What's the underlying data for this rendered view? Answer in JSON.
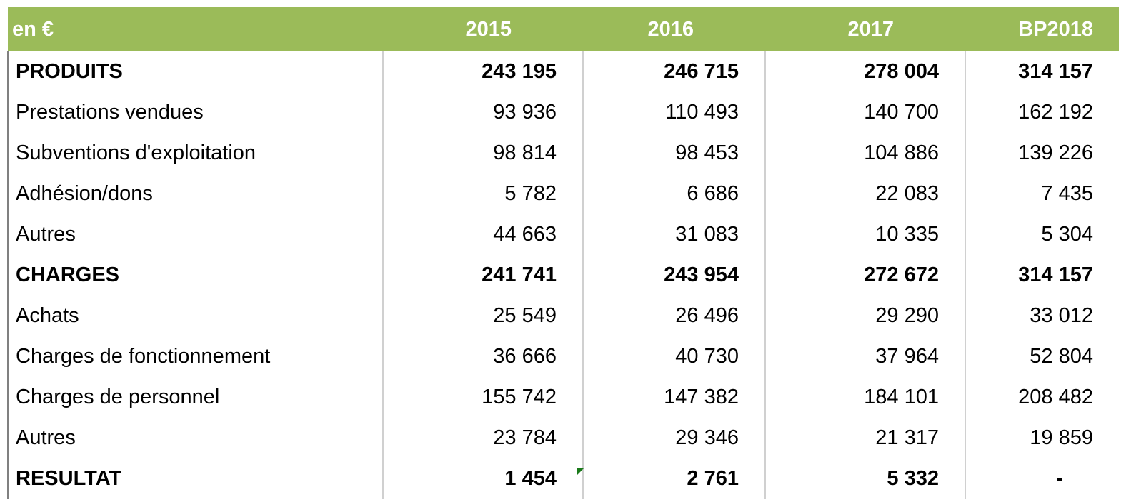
{
  "table": {
    "header": [
      "en €",
      "2015",
      "2016",
      "2017",
      "BP2018"
    ],
    "rows": [
      [
        "PRODUITS",
        "243 195",
        "246 715",
        "278 004",
        "314 157"
      ],
      [
        "Prestations vendues",
        "93 936",
        "110 493",
        "140 700",
        "162 192"
      ],
      [
        "Subventions d'exploitation",
        "98 814",
        "98 453",
        "104 886",
        "139 226"
      ],
      [
        "Adhésion/dons",
        "5 782",
        "6 686",
        "22 083",
        "7 435"
      ],
      [
        "Autres",
        "44 663",
        "31 083",
        "10 335",
        "5 304"
      ],
      [
        "CHARGES",
        "241 741",
        "243 954",
        "272 672",
        "314 157"
      ],
      [
        "Achats",
        "25 549",
        "26 496",
        "29 290",
        "33 012"
      ],
      [
        "Charges de fonctionnement",
        "36 666",
        "40 730",
        "37 964",
        "52 804"
      ],
      [
        "Charges de personnel",
        "155 742",
        "147 382",
        "184 101",
        "208 482"
      ],
      [
        "Autres",
        "23 784",
        "29 346",
        "21 317",
        "19 859"
      ],
      [
        "RESULTAT",
        "1 454",
        "2 761",
        "5 332",
        "-"
      ]
    ]
  }
}
